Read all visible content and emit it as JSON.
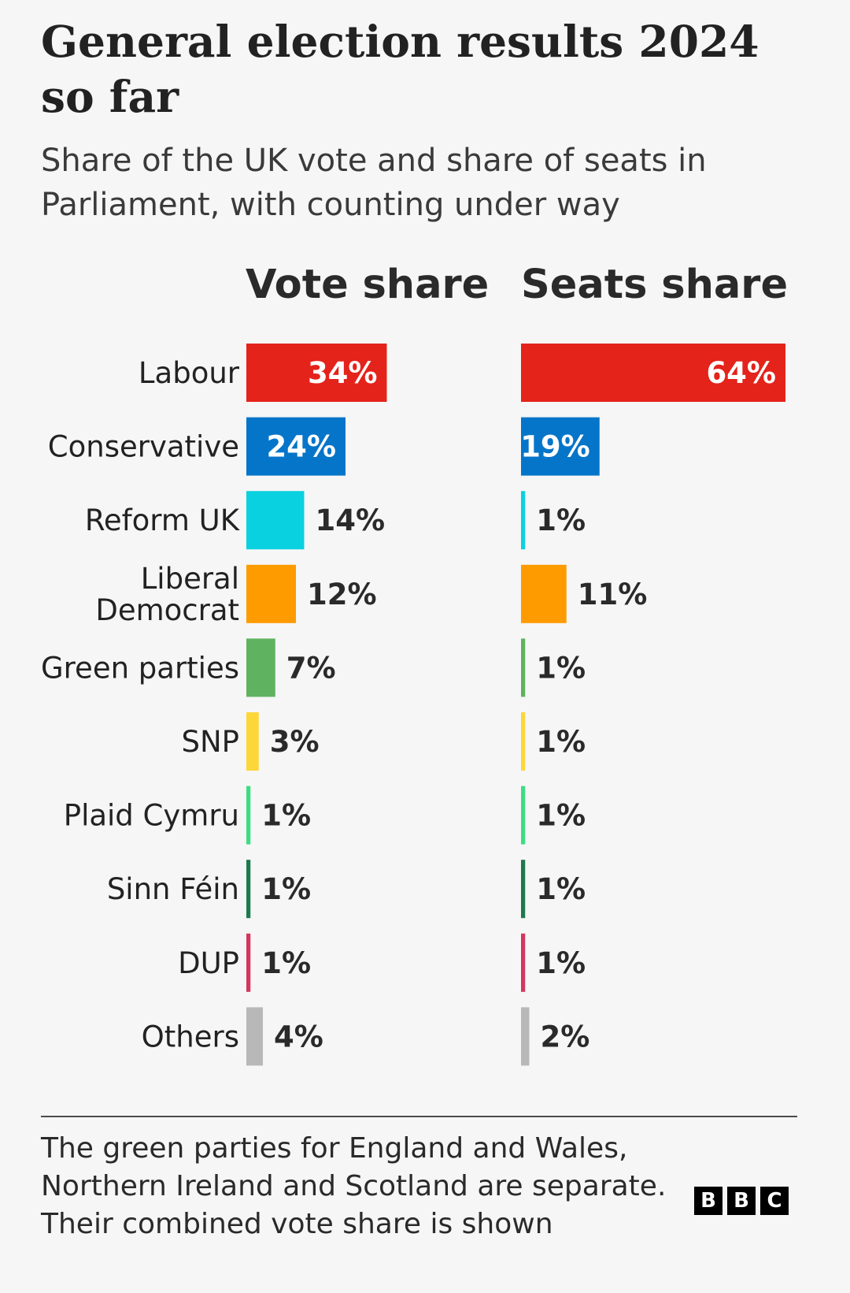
{
  "header": {
    "title": "General election results 2024 so far",
    "subtitle": "Share of the UK vote and share of seats in Parliament, with counting under way"
  },
  "chart_data": {
    "type": "bar",
    "orientation": "horizontal",
    "categories": [
      "Labour",
      "Conservative",
      "Reform UK",
      "Liberal Democrat",
      "Green parties",
      "SNP",
      "Plaid Cymru",
      "Sinn Féin",
      "DUP",
      "Others"
    ],
    "category_lines": [
      [
        "Labour"
      ],
      [
        "Conservative"
      ],
      [
        "Reform UK"
      ],
      [
        "Liberal",
        "Democrat"
      ],
      [
        "Green parties"
      ],
      [
        "SNP"
      ],
      [
        "Plaid Cymru"
      ],
      [
        "Sinn Féin"
      ],
      [
        "DUP"
      ],
      [
        "Others"
      ]
    ],
    "colors": [
      "#e4231b",
      "#0575c9",
      "#0ad1e0",
      "#fe9b00",
      "#5fb25f",
      "#fdd638",
      "#3ddc84",
      "#1d7a4e",
      "#d3365e",
      "#b8b8b8"
    ],
    "series": [
      {
        "name": "Vote share",
        "values": [
          34,
          24,
          14,
          12,
          7,
          3,
          1,
          1,
          1,
          4
        ],
        "labels": [
          "34%",
          "24%",
          "14%",
          "12%",
          "7%",
          "3%",
          "1%",
          "1%",
          "1%",
          "4%"
        ]
      },
      {
        "name": "Seats share",
        "values": [
          64,
          19,
          1,
          11,
          1,
          1,
          1,
          1,
          1,
          2
        ],
        "labels": [
          "64%",
          "19%",
          "1%",
          "11%",
          "1%",
          "1%",
          "1%",
          "1%",
          "1%",
          "2%"
        ]
      }
    ],
    "xlim": [
      0,
      64
    ],
    "grid": false,
    "legend": "none"
  },
  "footnote": "The green parties for England and Wales, Northern Ireland and Scotland are separate. Their combined vote share is shown",
  "logo": [
    "B",
    "B",
    "C"
  ]
}
